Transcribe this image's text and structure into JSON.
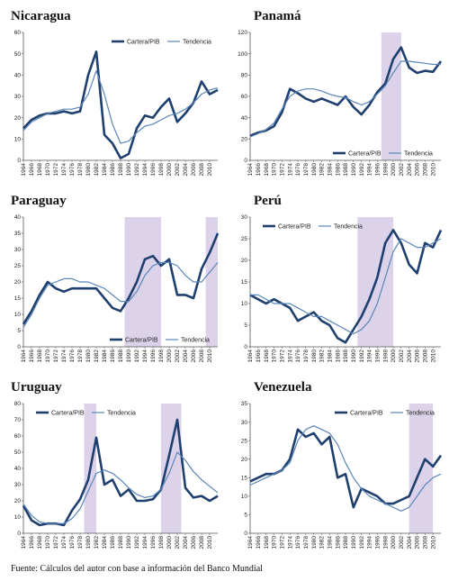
{
  "source_note": "Fuente:   Cálculos del autor con base a información del Banco Mundial",
  "chart_data": [
    {
      "type": "line",
      "title": "Nicaragua",
      "ylim": [
        0,
        60
      ],
      "yticks": [
        0,
        10,
        20,
        30,
        40,
        50,
        60
      ],
      "x": [
        1964,
        1966,
        1968,
        1970,
        1972,
        1974,
        1976,
        1978,
        1980,
        1982,
        1984,
        1986,
        1988,
        1990,
        1992,
        1994,
        1996,
        1998,
        2000,
        2002,
        2004,
        2006,
        2008,
        2010,
        2012
      ],
      "legend_position": "top-right",
      "shaded": [],
      "series": [
        {
          "name": "Cartera/PIB",
          "role": "cartera",
          "color": "#1f3f6e",
          "values": [
            15,
            19,
            21,
            22,
            22,
            23,
            22,
            23,
            40,
            51,
            12,
            8,
            1,
            3,
            15,
            21,
            20,
            25,
            29,
            18,
            22,
            27,
            37,
            31,
            33
          ]
        },
        {
          "name": "Tendencia",
          "role": "tendencia",
          "color": "#5b86b8",
          "values": [
            14,
            18,
            20,
            22,
            23,
            24,
            24,
            25,
            31,
            42,
            31,
            17,
            8,
            9,
            13,
            16,
            17,
            19,
            21,
            22,
            24,
            27,
            31,
            33,
            34
          ]
        }
      ]
    },
    {
      "type": "line",
      "title": "Panamá",
      "ylim": [
        0,
        120
      ],
      "yticks": [
        0,
        20,
        40,
        60,
        80,
        100,
        120
      ],
      "x": [
        1964,
        1966,
        1968,
        1970,
        1972,
        1974,
        1976,
        1978,
        1980,
        1982,
        1984,
        1986,
        1988,
        1990,
        1992,
        1994,
        1996,
        1998,
        2000,
        2002,
        2004,
        2006,
        2008,
        2010,
        2012
      ],
      "legend_position": "bottom-right",
      "shaded": [
        [
          1997,
          2002
        ]
      ],
      "series": [
        {
          "name": "Cartera/PIB",
          "role": "cartera",
          "color": "#1f3f6e",
          "values": [
            23,
            26,
            28,
            32,
            45,
            67,
            63,
            58,
            55,
            58,
            55,
            52,
            60,
            50,
            43,
            52,
            64,
            72,
            95,
            106,
            87,
            82,
            84,
            83,
            93
          ]
        },
        {
          "name": "Tendencia",
          "role": "tendencia",
          "color": "#5b86b8",
          "values": [
            22,
            25,
            29,
            35,
            48,
            60,
            65,
            67,
            67,
            65,
            62,
            60,
            59,
            55,
            52,
            55,
            62,
            70,
            82,
            93,
            93,
            92,
            91,
            90,
            90
          ]
        }
      ]
    },
    {
      "type": "line",
      "title": "Paraguay",
      "ylim": [
        0,
        40
      ],
      "yticks": [
        0,
        5,
        10,
        15,
        20,
        25,
        30,
        35,
        40
      ],
      "x": [
        1964,
        1966,
        1968,
        1970,
        1972,
        1974,
        1976,
        1978,
        1980,
        1982,
        1984,
        1986,
        1988,
        1990,
        1992,
        1994,
        1996,
        1998,
        2000,
        2002,
        2004,
        2006,
        2008,
        2010,
        2012
      ],
      "legend_position": "bottom-right",
      "shaded": [
        [
          1989,
          1998
        ],
        [
          2009,
          2012
        ]
      ],
      "series": [
        {
          "name": "Cartera/PIB",
          "role": "cartera",
          "color": "#1f3f6e",
          "values": [
            7,
            11,
            16,
            20,
            18,
            17,
            18,
            18,
            18,
            18,
            15,
            12,
            11,
            15,
            20,
            27,
            28,
            25,
            27,
            16,
            16,
            15,
            24,
            29,
            35
          ]
        },
        {
          "name": "Tendencia",
          "role": "tendencia",
          "color": "#5b86b8",
          "values": [
            6,
            10,
            15,
            19,
            20,
            21,
            21,
            20,
            20,
            19,
            18,
            16,
            14,
            14,
            17,
            22,
            25,
            26,
            26,
            25,
            22,
            20,
            20,
            23,
            26
          ]
        }
      ]
    },
    {
      "type": "line",
      "title": "Perú",
      "ylim": [
        0,
        30
      ],
      "yticks": [
        0,
        5,
        10,
        15,
        20,
        25,
        30
      ],
      "x": [
        1964,
        1966,
        1968,
        1970,
        1972,
        1974,
        1976,
        1978,
        1980,
        1982,
        1984,
        1986,
        1988,
        1990,
        1992,
        1994,
        1996,
        1998,
        2000,
        2002,
        2004,
        2006,
        2008,
        2010,
        2012
      ],
      "legend_position": "top-left",
      "shaded": [
        [
          1991,
          2000
        ]
      ],
      "series": [
        {
          "name": "Cartera/PIB",
          "role": "cartera",
          "color": "#1f3f6e",
          "values": [
            12,
            11,
            10,
            11,
            10,
            9,
            6,
            7,
            8,
            6,
            5,
            2,
            1,
            4,
            7,
            11,
            16,
            24,
            27,
            24,
            19,
            17,
            24,
            23,
            27
          ]
        },
        {
          "name": "Tendencia",
          "role": "tendencia",
          "color": "#5b86b8",
          "values": [
            12,
            12,
            11,
            10,
            10,
            10,
            9,
            8,
            7,
            7,
            6,
            5,
            4,
            3,
            4,
            6,
            10,
            16,
            22,
            25,
            24,
            23,
            23,
            24,
            25
          ]
        }
      ]
    },
    {
      "type": "line",
      "title": "Uruguay",
      "ylim": [
        0,
        80
      ],
      "yticks": [
        0,
        10,
        20,
        30,
        40,
        50,
        60,
        70,
        80
      ],
      "x": [
        1964,
        1966,
        1968,
        1970,
        1972,
        1974,
        1976,
        1978,
        1980,
        1982,
        1984,
        1986,
        1988,
        1990,
        1992,
        1994,
        1996,
        1998,
        2000,
        2002,
        2004,
        2006,
        2008,
        2010,
        2012
      ],
      "legend_position": "top-left",
      "shaded": [
        [
          1979,
          1982
        ],
        [
          1998,
          2003
        ]
      ],
      "series": [
        {
          "name": "Cartera/PIB",
          "role": "cartera",
          "color": "#1f3f6e",
          "values": [
            17,
            8,
            5,
            6,
            6,
            5,
            14,
            21,
            33,
            59,
            30,
            33,
            23,
            27,
            20,
            20,
            21,
            27,
            48,
            70,
            28,
            22,
            23,
            20,
            23
          ]
        },
        {
          "name": "Tendencia",
          "role": "tendencia",
          "color": "#5b86b8",
          "values": [
            18,
            11,
            7,
            6,
            6,
            6,
            9,
            15,
            26,
            37,
            39,
            37,
            33,
            28,
            24,
            22,
            23,
            27,
            37,
            50,
            45,
            38,
            33,
            29,
            25
          ]
        }
      ]
    },
    {
      "type": "line",
      "title": "Venezuela",
      "ylim": [
        0,
        35
      ],
      "yticks": [
        0,
        5,
        10,
        15,
        20,
        25,
        30,
        35
      ],
      "x": [
        1964,
        1966,
        1968,
        1970,
        1972,
        1974,
        1976,
        1978,
        1980,
        1982,
        1984,
        1986,
        1988,
        1990,
        1992,
        1994,
        1996,
        1998,
        2000,
        2002,
        2004,
        2006,
        2008,
        2010,
        2012
      ],
      "legend_position": "top-right",
      "shaded": [
        [
          2004,
          2010
        ]
      ],
      "series": [
        {
          "name": "Cartera/PIB",
          "role": "cartera",
          "color": "#1f3f6e",
          "values": [
            14,
            15,
            16,
            16,
            17,
            20,
            28,
            26,
            27,
            24,
            26,
            15,
            16,
            7,
            12,
            11,
            10,
            8,
            8,
            9,
            10,
            15,
            20,
            18,
            21
          ]
        },
        {
          "name": "Tendencia",
          "role": "tendencia",
          "color": "#5b86b8",
          "values": [
            13,
            14,
            15,
            16,
            17,
            19,
            25,
            28,
            29,
            28,
            27,
            24,
            19,
            15,
            12,
            10,
            9,
            8,
            7,
            6,
            7,
            10,
            13,
            15,
            16
          ]
        }
      ]
    }
  ]
}
